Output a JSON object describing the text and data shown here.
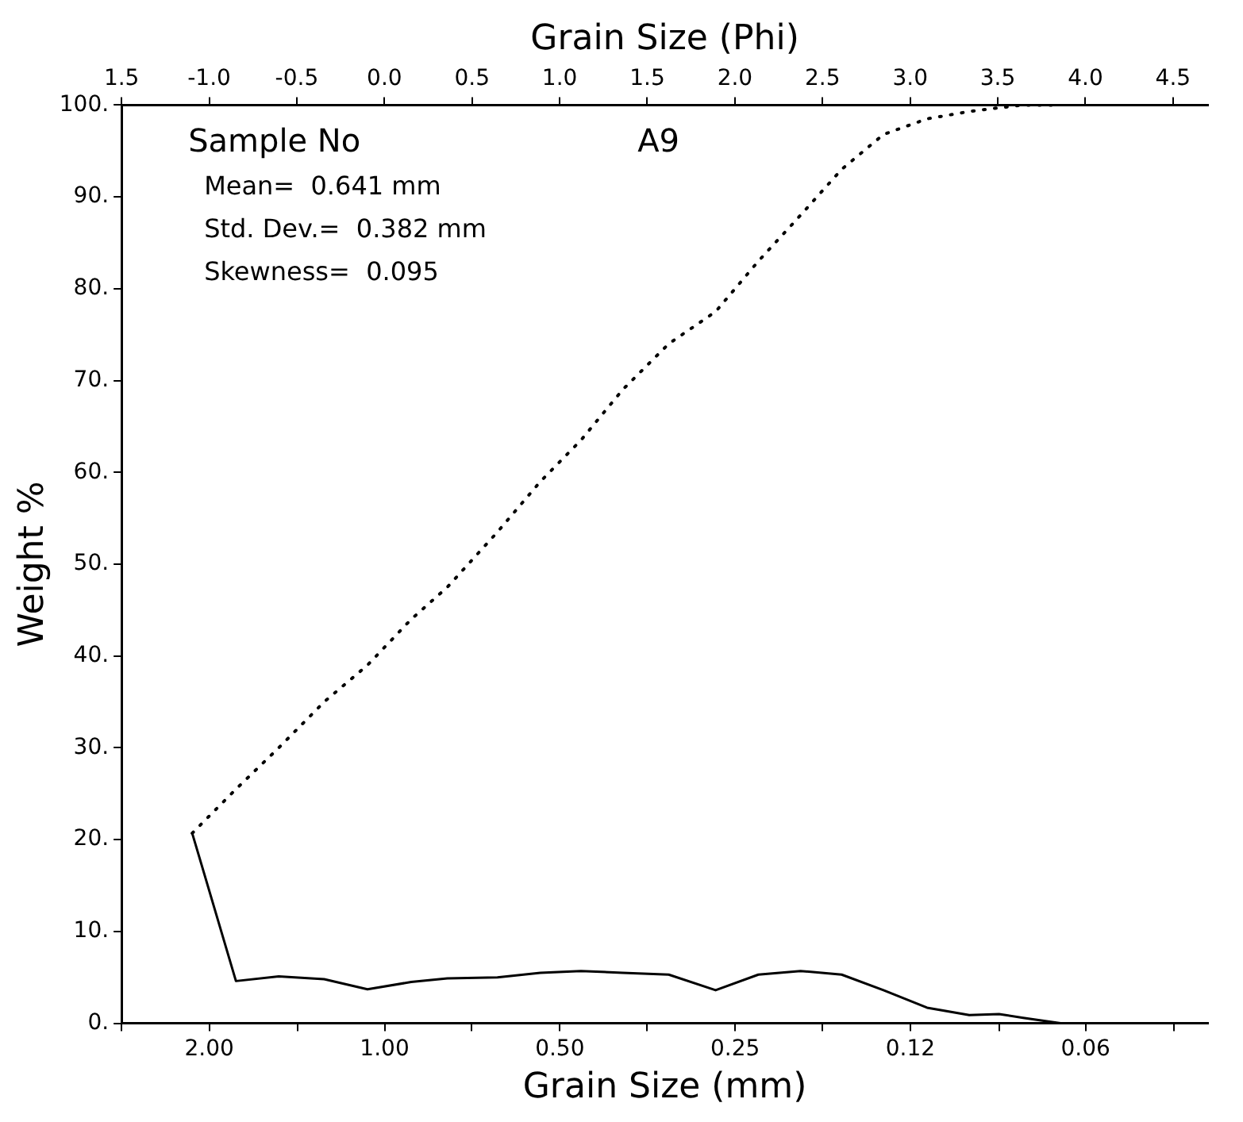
{
  "chart_data": {
    "type": "line",
    "xlabel": "Grain Size (mm)",
    "x2label": "Grain Size (Phi)",
    "ylabel": "Weight %",
    "x": [
      2.14,
      1.8,
      1.52,
      1.27,
      1.07,
      0.9,
      0.78,
      0.64,
      0.54,
      0.46,
      0.39,
      0.325,
      0.27,
      0.228,
      0.193,
      0.164,
      0.139,
      0.117,
      0.099,
      0.088,
      0.08,
      0.069
    ],
    "log": "x",
    "series": [
      {
        "color": "#000000",
        "line_style": "solid",
        "values": [
          20.7,
          4.6,
          5.1,
          4.8,
          3.7,
          4.5,
          4.9,
          5.0,
          5.5,
          5.7,
          5.5,
          5.3,
          3.6,
          5.3,
          5.7,
          5.3,
          3.6,
          1.7,
          0.9,
          1.0,
          0.6,
          0
        ]
      },
      {
        "color": "#000000",
        "line_style": "dotted",
        "values": [
          20.7,
          25.5,
          30,
          35,
          39,
          44,
          47.5,
          53.5,
          59,
          63.5,
          69,
          74,
          77.5,
          83,
          88,
          93,
          96.8,
          98.5,
          99.3,
          99.7,
          100,
          100
        ]
      }
    ],
    "xlim": [
      2.83,
      0.0385
    ],
    "x2lim": [
      -1.5,
      4.7
    ],
    "xticks": [
      {
        "value": 2.83,
        "label": null
      },
      {
        "value": 2,
        "label": "2.00"
      },
      {
        "value": 1.41,
        "label": null
      },
      {
        "value": 1,
        "label": "1.00"
      },
      {
        "value": 0.71,
        "label": null
      },
      {
        "value": 0.5,
        "label": "0.50"
      },
      {
        "value": 0.354,
        "label": null
      },
      {
        "value": 0.25,
        "label": "0.25"
      },
      {
        "value": 0.177,
        "label": null
      },
      {
        "value": 0.125,
        "label": "0.12"
      },
      {
        "value": 0.088,
        "label": null
      },
      {
        "value": 0.0625,
        "label": "0.06"
      },
      {
        "value": 0.044,
        "label": null
      }
    ],
    "x2ticks": [
      {
        "value": -1.5,
        "label": "1.5"
      },
      {
        "value": -1,
        "label": "-1.0"
      },
      {
        "value": -0.5,
        "label": "-0.5"
      },
      {
        "value": 0,
        "label": "0.0"
      },
      {
        "value": 0.5,
        "label": "0.5"
      },
      {
        "value": 1,
        "label": "1.0"
      },
      {
        "value": 1.5,
        "label": "1.5"
      },
      {
        "value": 2,
        "label": "2.0"
      },
      {
        "value": 2.5,
        "label": "2.5"
      },
      {
        "value": 3,
        "label": "3.0"
      },
      {
        "value": 3.5,
        "label": "3.5"
      },
      {
        "value": 4,
        "label": "4.0"
      },
      {
        "value": 4.5,
        "label": "4.5"
      }
    ],
    "ylim": [
      0,
      100
    ],
    "yticks": [
      {
        "value": 0,
        "label": "0."
      },
      {
        "value": 10,
        "label": "10."
      },
      {
        "value": 20,
        "label": "20."
      },
      {
        "value": 30,
        "label": "30."
      },
      {
        "value": 40,
        "label": "40."
      },
      {
        "value": 50,
        "label": "50."
      },
      {
        "value": 60,
        "label": "60."
      },
      {
        "value": 70,
        "label": "70."
      },
      {
        "value": 80,
        "label": "80."
      },
      {
        "value": 90,
        "label": "90."
      },
      {
        "value": 100,
        "label": "100."
      }
    ],
    "grid": false,
    "legend": false,
    "marker": "none",
    "annotations": [
      "Sample No",
      "A9",
      "Mean=  0.641 mm",
      "Std. Dev.=  0.382 mm",
      "Skewness=  0.095"
    ]
  }
}
